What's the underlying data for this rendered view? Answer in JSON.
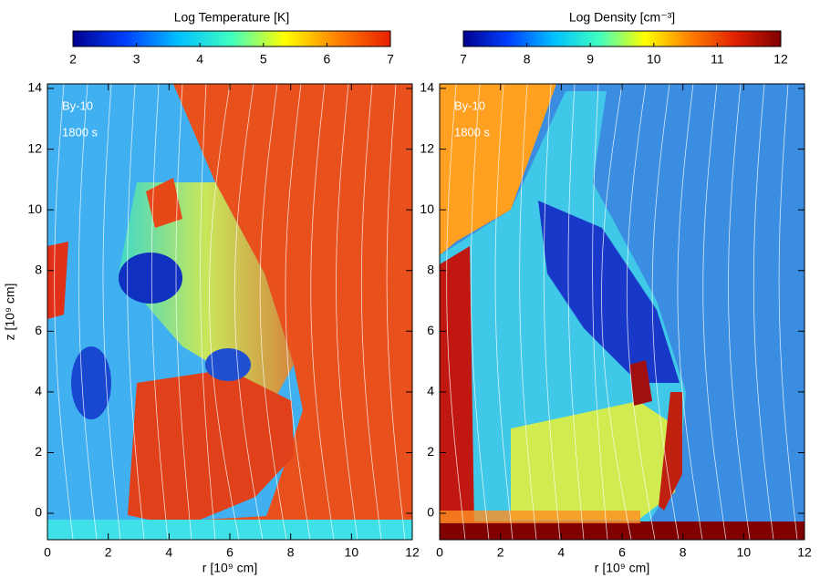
{
  "chart_data": [
    {
      "type": "heatmap",
      "title": "Log Temperature [K]",
      "xlabel": "r [10⁹ cm]",
      "ylabel": "z [10⁹ cm]",
      "annotations": [
        "By-10",
        "1800 s"
      ],
      "xlim": [
        0,
        12
      ],
      "ylim": [
        -0.87,
        14.15
      ],
      "xticks": [
        0,
        2,
        4,
        6,
        8,
        10,
        12
      ],
      "yticks": [
        0,
        2,
        4,
        6,
        8,
        10,
        12,
        14
      ],
      "clim": [
        2,
        7
      ],
      "cticks": [
        2,
        3,
        4,
        5,
        6,
        7
      ],
      "colormap": [
        "#00008f",
        "#0040ff",
        "#00c0ff",
        "#40ffc0",
        "#ffff00",
        "#ff8000",
        "#e82000"
      ]
    },
    {
      "type": "heatmap",
      "title": "Log Density [cm⁻³]",
      "xlabel": "r [10⁹ cm]",
      "annotations": [
        "By-10",
        "1800 s"
      ],
      "xlim": [
        0,
        12
      ],
      "ylim": [
        -0.87,
        14.15
      ],
      "xticks": [
        0,
        2,
        4,
        6,
        8,
        10,
        12
      ],
      "yticks": [
        0,
        2,
        4,
        6,
        8,
        10,
        12,
        14
      ],
      "clim": [
        7,
        12
      ],
      "cticks": [
        7,
        8,
        9,
        10,
        11,
        12
      ],
      "colormap": [
        "#00008f",
        "#0040ff",
        "#00c0ff",
        "#40ffc0",
        "#ffff00",
        "#ff8000",
        "#e02000",
        "#800000"
      ]
    }
  ]
}
